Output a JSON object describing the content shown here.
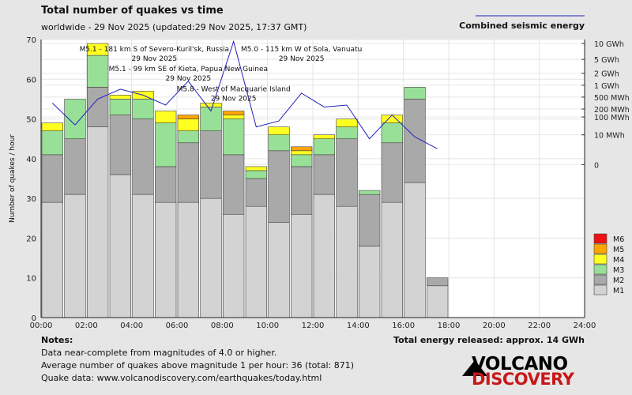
{
  "chart_data": {
    "type": "bar",
    "title": "Total number of quakes vs time",
    "subtitle": "worldwide - 29 Nov 2025 (updated:29 Nov 2025, 17:37 GMT)",
    "ylabel": "Number of quakes / hour",
    "ylim": [
      0,
      70
    ],
    "y_ticks": [
      0,
      10,
      20,
      30,
      40,
      50,
      60,
      70
    ],
    "x_tick_labels": [
      "00:00",
      "02:00",
      "04:00",
      "06:00",
      "08:00",
      "10:00",
      "12:00",
      "14:00",
      "16:00",
      "18:00",
      "20:00",
      "22:00",
      "24:00"
    ],
    "hours": 24,
    "stack_order": [
      "M1",
      "M2",
      "M3",
      "M4",
      "M5",
      "M6"
    ],
    "series": [
      {
        "name": "M1",
        "color": "#d3d3d3",
        "values": [
          29,
          31,
          48,
          36,
          31,
          29,
          29,
          30,
          26,
          28,
          24,
          26,
          31,
          28,
          18,
          29,
          34,
          8
        ]
      },
      {
        "name": "M2",
        "color": "#a9a9a9",
        "values": [
          12,
          14,
          10,
          15,
          19,
          9,
          15,
          17,
          15,
          7,
          18,
          12,
          10,
          17,
          13,
          15,
          21,
          2
        ]
      },
      {
        "name": "M3",
        "color": "#98e098",
        "values": [
          6,
          10,
          8,
          4,
          5,
          11,
          3,
          6,
          9,
          2,
          4,
          3,
          4,
          3,
          1,
          5,
          3,
          0
        ]
      },
      {
        "name": "M4",
        "color": "#ffff22",
        "values": [
          2,
          0,
          3,
          1,
          2,
          3,
          3,
          1,
          1,
          1,
          2,
          1,
          1,
          2,
          0,
          2,
          0,
          0
        ]
      },
      {
        "name": "M5",
        "color": "#ffa500",
        "values": [
          0,
          0,
          0,
          0,
          0,
          0,
          1,
          0,
          1,
          0,
          0,
          1,
          0,
          0,
          0,
          0,
          0,
          0
        ]
      },
      {
        "name": "M6",
        "color": "#ee1111",
        "values": [
          0,
          0,
          0,
          0,
          0,
          0,
          0,
          0,
          0,
          0,
          0,
          0,
          0,
          0,
          0,
          0,
          0,
          0
        ]
      }
    ],
    "legend": [
      "M6",
      "M5",
      "M4",
      "M3",
      "M2",
      "M1"
    ],
    "energy": {
      "name": "Combined seismic energy",
      "color": "#2222bb",
      "axis_labels": [
        "10 GWh",
        "5 GWh",
        "2 GWh",
        "1 GWh",
        "500 MWh",
        "200 MWh",
        "100 MWh",
        "10 MWh",
        "0"
      ],
      "axis_values": [
        69,
        65,
        61.5,
        58.5,
        55.5,
        52.5,
        50.5,
        46,
        38.5
      ],
      "points": [
        [
          0.5,
          54
        ],
        [
          1.5,
          48.5
        ],
        [
          2.5,
          55
        ],
        [
          3.5,
          57.5
        ],
        [
          4.5,
          56
        ],
        [
          5.5,
          53.5
        ],
        [
          6.5,
          59.5
        ],
        [
          7.5,
          52
        ],
        [
          8.5,
          69.5
        ],
        [
          9.5,
          48
        ],
        [
          10.5,
          49.5
        ],
        [
          11.5,
          56.5
        ],
        [
          12.5,
          53
        ],
        [
          13.5,
          53.5
        ],
        [
          14.5,
          45
        ],
        [
          15.5,
          51
        ],
        [
          16.5,
          45.5
        ],
        [
          17.5,
          42.5
        ]
      ]
    },
    "annotations": [
      {
        "text": "M5.1 - 181 km S of Severo-Kuril'sk, Russia",
        "date": "29 Nov 2025",
        "hour": 5.0,
        "value": 67
      },
      {
        "text": "M5.1 - 99 km SE of Kieta, Papua New Guinea",
        "date": "29 Nov 2025",
        "hour": 6.5,
        "value": 62
      },
      {
        "text": "M5.8 - West of Macquarie Island",
        "date": "29 Nov 2025",
        "hour": 8.5,
        "value": 57
      },
      {
        "text": "M5.0 - 115 km W of Sola, Vanuatu",
        "date": "29 Nov 2025",
        "hour": 11.5,
        "value": 67
      }
    ]
  },
  "footer": {
    "notes_title": "Notes:",
    "note1": "Data near-complete from magnitudes of 4.0 or higher.",
    "note2": "Average number of quakes above magnitude 1 per hour: 36 (total: 871)",
    "note3": "Quake data: www.volcanodiscovery.com/earthquakes/today.html",
    "energy_total": "Total energy released: approx. 14 GWh",
    "logo_top": "VOLCANO",
    "logo_bottom": "DISCOVERY"
  }
}
